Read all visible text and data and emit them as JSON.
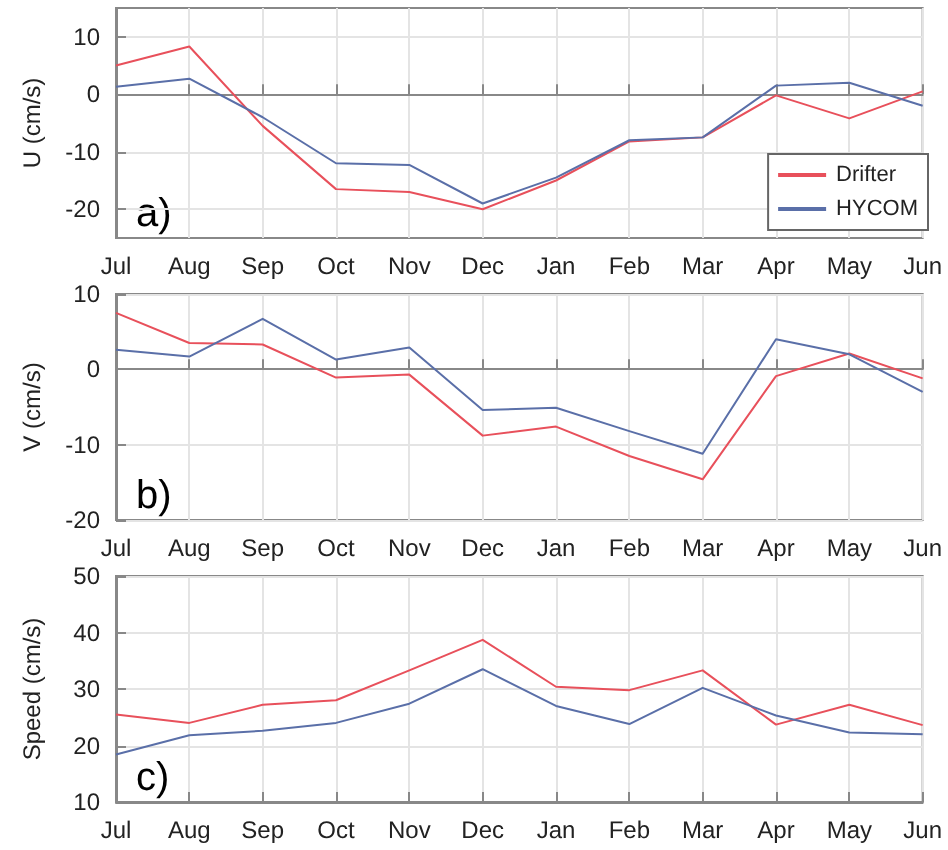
{
  "chart_data": [
    {
      "type": "line",
      "ylabel": "U (cm/s)",
      "categories": [
        "Jul",
        "Aug",
        "Sep",
        "Oct",
        "Nov",
        "Dec",
        "Jan",
        "Feb",
        "Mar",
        "Apr",
        "May",
        "Jun"
      ],
      "series": [
        {
          "name": "Drifter",
          "color": "#e8505b",
          "values": [
            5,
            8.3,
            -5.5,
            -16.5,
            -17,
            -20,
            -15,
            -8.2,
            -7.5,
            -0.2,
            -4.2,
            0.5
          ]
        },
        {
          "name": "HYCOM",
          "color": "#5a6fa8",
          "values": [
            1.3,
            2.7,
            -4,
            -12,
            -12.3,
            -19,
            -14.5,
            -8,
            -7.5,
            1.5,
            2,
            -2
          ]
        }
      ],
      "ylim": [
        -25,
        15
      ],
      "yticks": [
        -20,
        -10,
        0,
        10
      ],
      "grid": true,
      "legend": "bottom right",
      "annotations": [
        "a)"
      ]
    },
    {
      "type": "line",
      "ylabel": "V (cm/s)",
      "categories": [
        "Jul",
        "Aug",
        "Sep",
        "Oct",
        "Nov",
        "Dec",
        "Jan",
        "Feb",
        "Mar",
        "Apr",
        "May",
        "Jun"
      ],
      "series": [
        {
          "color": "#e8505b",
          "values": [
            7.5,
            3.5,
            3.3,
            -1.1,
            -0.7,
            -8.8,
            -7.6,
            -11.5,
            -14.6,
            -0.9,
            2.1,
            -1.2
          ]
        },
        {
          "color": "#5a6fa8",
          "values": [
            2.6,
            1.7,
            6.7,
            1.3,
            2.9,
            -5.4,
            -5.1,
            -8.2,
            -11.2,
            4,
            2,
            -3
          ]
        }
      ],
      "ylim": [
        -20,
        10
      ],
      "yticks": [
        -20,
        -10,
        0,
        10
      ],
      "grid": true,
      "annotations": [
        "b)"
      ]
    },
    {
      "type": "line",
      "ylabel": "Speed (cm/s)",
      "categories": [
        "Jul",
        "Aug",
        "Sep",
        "Oct",
        "Nov",
        "Dec",
        "Jan",
        "Feb",
        "Mar",
        "Apr",
        "May",
        "Jun"
      ],
      "series": [
        {
          "color": "#e8505b",
          "values": [
            25.5,
            24,
            27.2,
            28,
            33.3,
            38.7,
            30.4,
            29.8,
            33.3,
            23.7,
            27.2,
            23.6
          ]
        },
        {
          "color": "#5a6fa8",
          "values": [
            18.4,
            21.8,
            22.6,
            24,
            27.4,
            33.5,
            27,
            23.8,
            30.2,
            25.3,
            22.3,
            22
          ]
        }
      ],
      "ylim": [
        10,
        50
      ],
      "yticks": [
        10,
        20,
        30,
        40,
        50
      ],
      "grid": true,
      "annotations": [
        "c)"
      ]
    }
  ]
}
